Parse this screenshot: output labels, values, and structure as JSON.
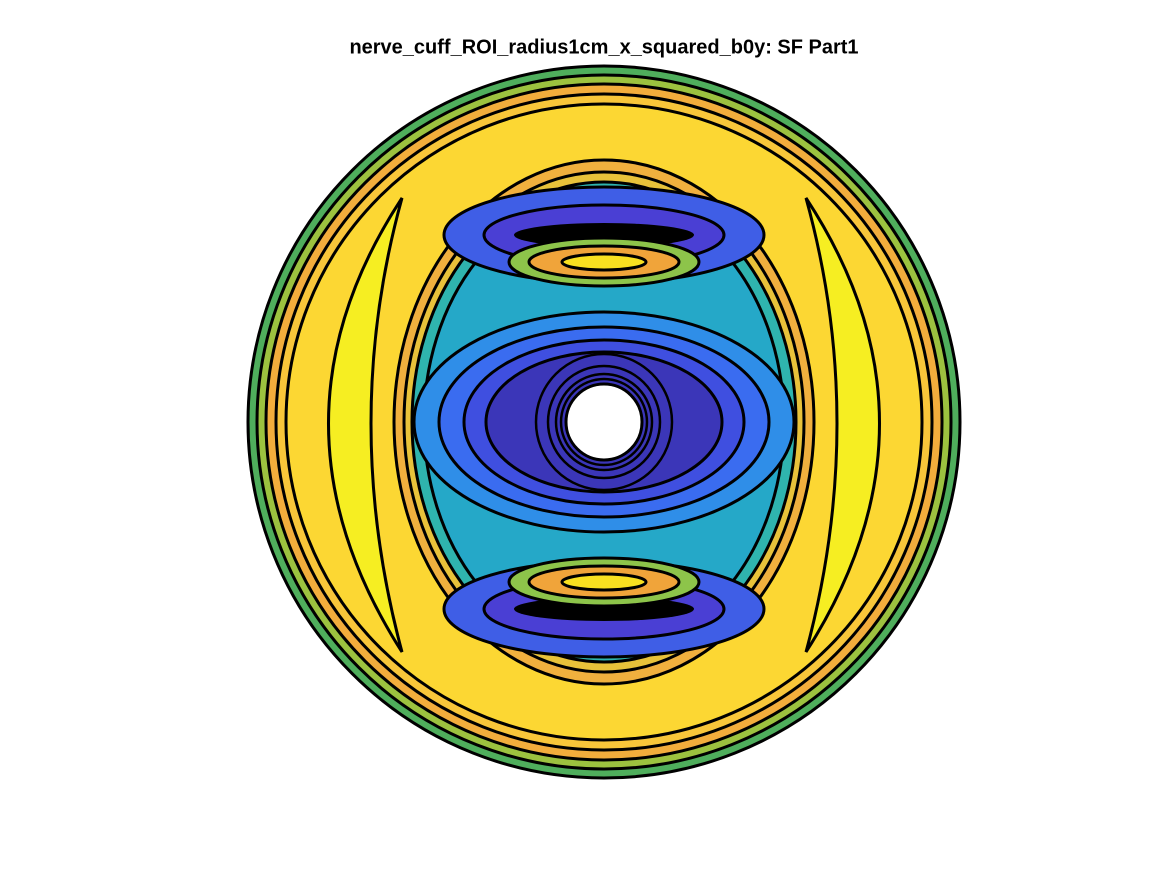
{
  "chart_data": {
    "type": "contour",
    "title": "nerve_cuff_ROI_radius1cm_x_squared_b0y: SF Part1"
  }
}
